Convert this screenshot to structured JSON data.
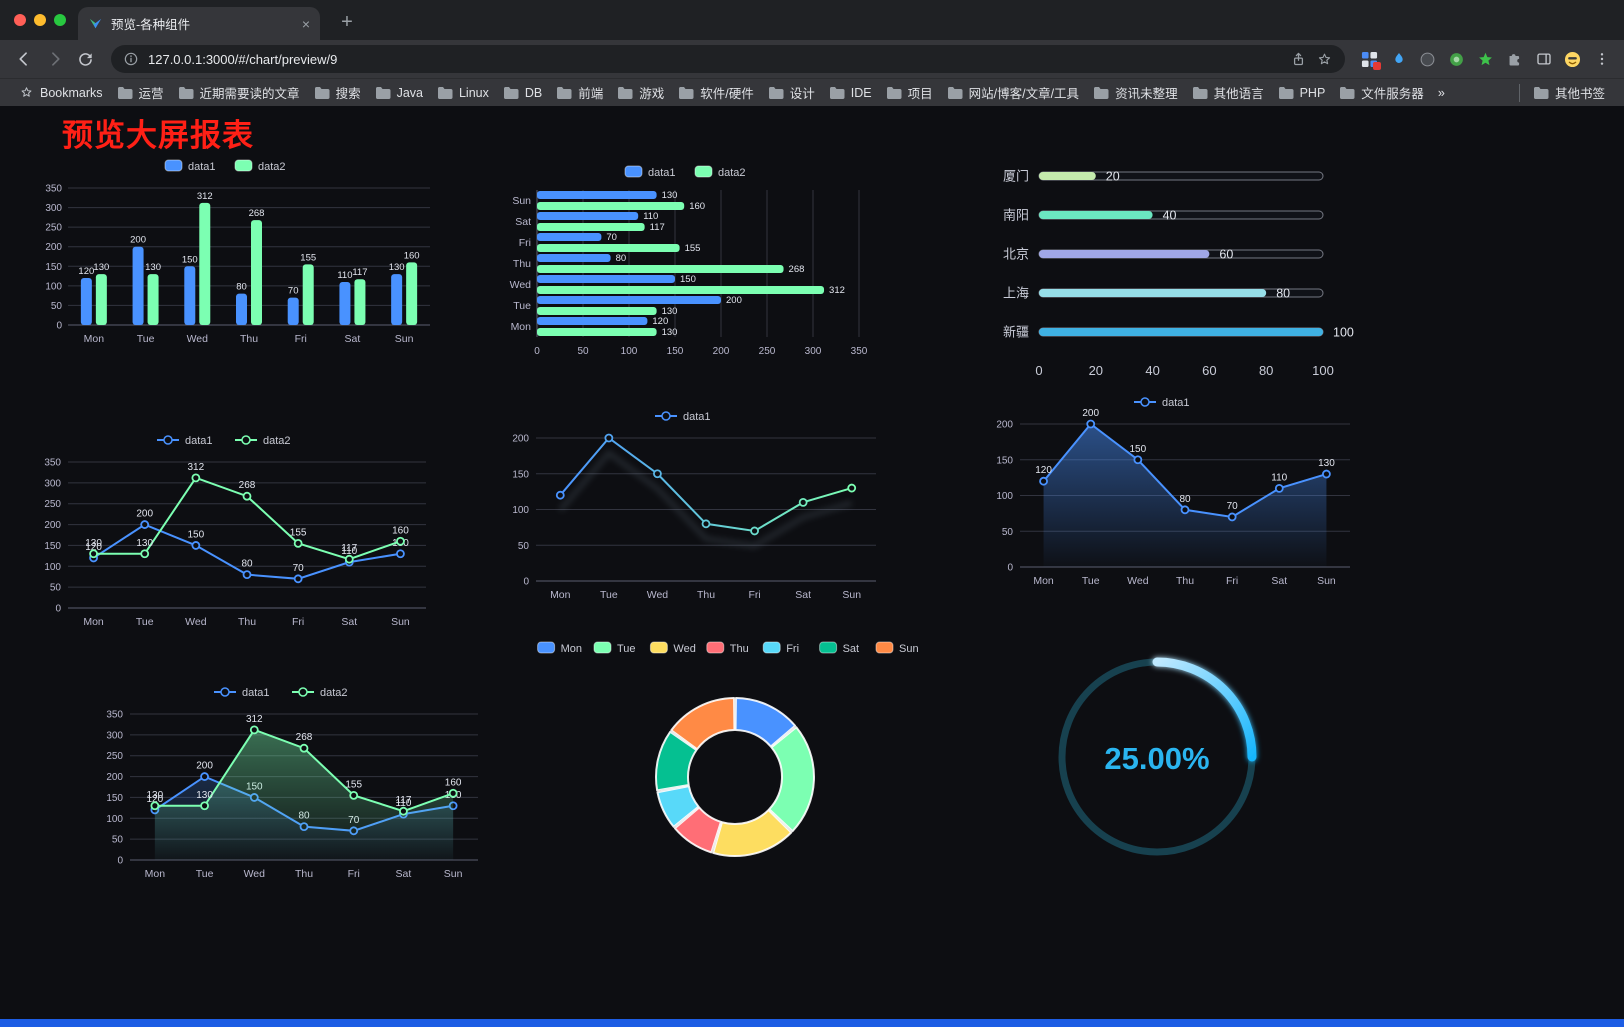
{
  "browser": {
    "tab": {
      "title": "预览-各种组件",
      "close_glyph": "×"
    },
    "new_tab_glyph": "+",
    "url": "127.0.0.1:3000/#/chart/preview/9",
    "bookmarks_bar": {
      "root_label": "Bookmarks",
      "folders": [
        "运营",
        "近期需要读的文章",
        "搜索",
        "Java",
        "Linux",
        "DB",
        "前端",
        "游戏",
        "软件/硬件",
        "设计",
        "IDE",
        "项目",
        "网站/博客/文章/工具",
        "资讯未整理",
        "其他语言",
        "PHP",
        "文件服务器"
      ],
      "overflow_label": "»",
      "other_label": "其他书签"
    }
  },
  "page": {
    "title": "预览大屏报表",
    "title_color": "#ff2016",
    "accent_bar_color": "#1d5de4",
    "background": "#0d0e12"
  },
  "chart_data": [
    {
      "id": "grouped-bar",
      "type": "bar",
      "categories": [
        "Mon",
        "Tue",
        "Wed",
        "Thu",
        "Fri",
        "Sat",
        "Sun"
      ],
      "series": [
        {
          "name": "data1",
          "color": "#4992ff",
          "values": [
            120,
            200,
            150,
            80,
            70,
            110,
            130
          ]
        },
        {
          "name": "data2",
          "color": "#7cffb2",
          "values": [
            130,
            130,
            312,
            268,
            155,
            117,
            160
          ]
        }
      ],
      "ylim": [
        0,
        350
      ],
      "ytick_step": 50,
      "legend_position": "top",
      "grid": true
    },
    {
      "id": "horizontal-bar",
      "type": "bar-horizontal",
      "categories": [
        "Mon",
        "Tue",
        "Wed",
        "Thu",
        "Fri",
        "Sat",
        "Sun"
      ],
      "series": [
        {
          "name": "data1",
          "color": "#4992ff",
          "values": [
            120,
            200,
            150,
            80,
            70,
            110,
            130
          ]
        },
        {
          "name": "data2",
          "color": "#7cffb2",
          "values": [
            130,
            130,
            312,
            268,
            155,
            117,
            160
          ]
        }
      ],
      "xlim": [
        0,
        350
      ],
      "xtick_step": 50,
      "legend_position": "top",
      "grid": true
    },
    {
      "id": "city-progress",
      "type": "progress",
      "max": 100,
      "rows": [
        {
          "label": "厦门",
          "value": 20,
          "color": "#c4ebad"
        },
        {
          "label": "南阳",
          "value": 40,
          "color": "#6be6c1"
        },
        {
          "label": "北京",
          "value": 60,
          "color": "#a0a7e6"
        },
        {
          "label": "上海",
          "value": 80,
          "color": "#96dee8"
        },
        {
          "label": "新疆",
          "value": 100,
          "color": "#3fb1e3"
        }
      ],
      "xticks": [
        0,
        20,
        40,
        60,
        80,
        100
      ]
    },
    {
      "id": "two-line",
      "type": "line",
      "categories": [
        "Mon",
        "Tue",
        "Wed",
        "Thu",
        "Fri",
        "Sat",
        "Sun"
      ],
      "series": [
        {
          "name": "data1",
          "color": "#4992ff",
          "values": [
            120,
            200,
            150,
            80,
            70,
            110,
            130
          ],
          "area_opacity": 0
        },
        {
          "name": "data2",
          "color": "#7cffb2",
          "values": [
            130,
            130,
            312,
            268,
            155,
            117,
            160
          ],
          "area_opacity": 0
        }
      ],
      "ylim": [
        0,
        350
      ],
      "ytick_step": 50,
      "show_labels": true
    },
    {
      "id": "gradient-line",
      "type": "line-gradient",
      "categories": [
        "Mon",
        "Tue",
        "Wed",
        "Thu",
        "Fri",
        "Sat",
        "Sun"
      ],
      "series": [
        {
          "name": "data1",
          "color_start": "#4992ff",
          "color_end": "#7cffb2",
          "values": [
            120,
            200,
            150,
            80,
            70,
            110,
            130
          ],
          "area_opacity": 0
        }
      ],
      "ylim": [
        0,
        200
      ],
      "ytick_step": 50,
      "show_labels": false,
      "shadow": true
    },
    {
      "id": "area-line",
      "type": "line-area",
      "categories": [
        "Mon",
        "Tue",
        "Wed",
        "Thu",
        "Fri",
        "Sat",
        "Sun"
      ],
      "series": [
        {
          "name": "data1",
          "color": "#4992ff",
          "values": [
            120,
            200,
            150,
            80,
            70,
            110,
            130
          ],
          "area_opacity": 0.5
        }
      ],
      "ylim": [
        0,
        200
      ],
      "ytick_step": 50,
      "show_labels": true
    },
    {
      "id": "two-line-area",
      "type": "line",
      "categories": [
        "Mon",
        "Tue",
        "Wed",
        "Thu",
        "Fri",
        "Sat",
        "Sun"
      ],
      "series": [
        {
          "name": "data1",
          "color": "#4992ff",
          "values": [
            120,
            200,
            150,
            80,
            70,
            110,
            130
          ],
          "area_opacity": 0.22
        },
        {
          "name": "data2",
          "color": "#7cffb2",
          "values": [
            130,
            130,
            312,
            268,
            155,
            117,
            160
          ],
          "area_opacity": 0.4
        }
      ],
      "ylim": [
        0,
        350
      ],
      "ytick_step": 50,
      "show_labels": true
    },
    {
      "id": "weekday-donut",
      "type": "donut",
      "items": [
        {
          "label": "Mon",
          "value": 120,
          "color": "#4992ff"
        },
        {
          "label": "Tue",
          "value": 200,
          "color": "#7cffb2"
        },
        {
          "label": "Wed",
          "value": 150,
          "color": "#fddd60"
        },
        {
          "label": "Thu",
          "value": 80,
          "color": "#ff6e76"
        },
        {
          "label": "Fri",
          "value": 70,
          "color": "#58d9f9"
        },
        {
          "label": "Sat",
          "value": 110,
          "color": "#05c091"
        },
        {
          "label": "Sun",
          "value": 130,
          "color": "#ff8a45"
        }
      ]
    },
    {
      "id": "percent-gauge",
      "type": "gauge",
      "percent": 25,
      "value_label": "25.00%",
      "color_start": "#bfe9ff",
      "color_end": "#18b6fd",
      "track_color": "#17414f",
      "text_color": "#2ab5f0"
    }
  ]
}
